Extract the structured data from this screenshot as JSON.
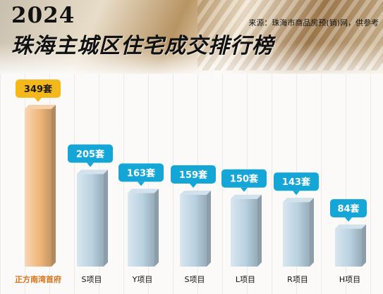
{
  "header": {
    "year": "2024",
    "title": "珠海主城区住宅成交排行榜",
    "source": "来源：珠海市商品房预(销)网，供参考"
  },
  "colors": {
    "highlight_bar": "#f0b77a",
    "regular_bar": "#b9d2e1",
    "highlight_label_bg": "#f5b81a",
    "regular_label_bg": "#15a6d8",
    "highlight_category_text": "#d6731c",
    "regular_category_text": "#111111"
  },
  "chart_data": {
    "type": "bar",
    "categories": [
      "正方南湾首府",
      "S项目",
      "Y项目",
      "S项目",
      "L项目",
      "R项目",
      "H项目"
    ],
    "values": [
      349,
      205,
      163,
      159,
      150,
      143,
      84
    ],
    "value_labels": [
      "349套",
      "205套",
      "163套",
      "159套",
      "150套",
      "143套",
      "84套"
    ],
    "unit": "套",
    "highlight_index": 0,
    "ylim": [
      0,
      349
    ],
    "grid": false,
    "legend": "none"
  }
}
